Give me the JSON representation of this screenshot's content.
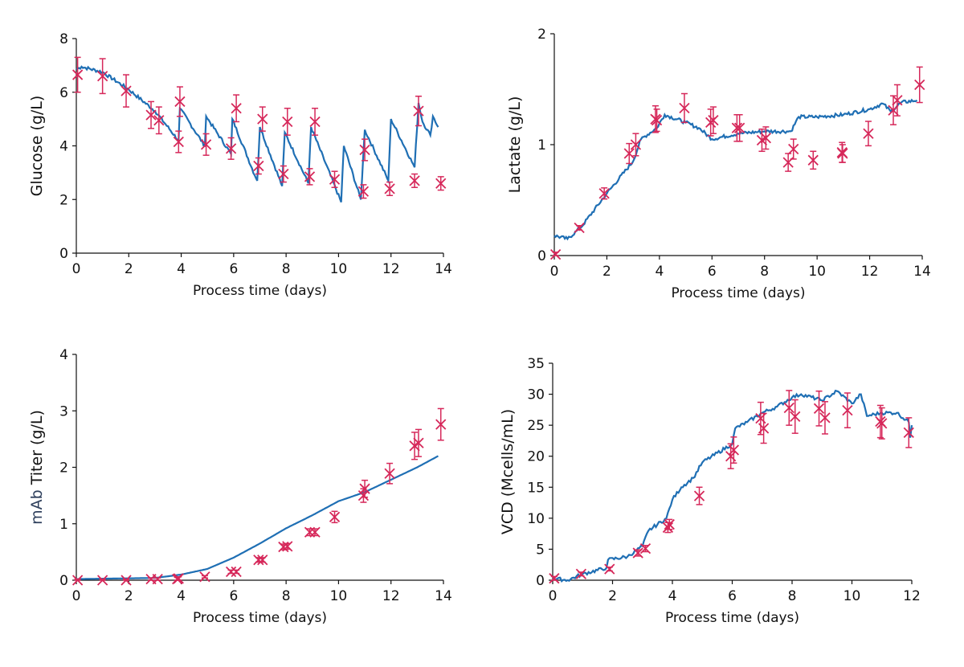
{
  "colors": {
    "model": "#1f6fb4",
    "measured": "#d6285a",
    "mab_label": "#2e3f5c"
  },
  "chart_data": [
    {
      "type": "line",
      "ylabel": "Glucose (g/L)",
      "xlabel": "Process time (days)",
      "xlim": [
        0,
        14
      ],
      "ylim": [
        0,
        8
      ],
      "xticks": [
        "0",
        "2",
        "4",
        "6",
        "8",
        "10",
        "12",
        "14"
      ],
      "yticks": [
        "0",
        "2",
        "4",
        "6",
        "8"
      ],
      "model_line": [
        [
          0,
          6.85
        ],
        [
          0.2,
          6.95
        ],
        [
          1,
          6.75
        ],
        [
          2,
          6.1
        ],
        [
          3,
          5.3
        ],
        [
          3.9,
          4.2
        ],
        [
          3.95,
          5.4
        ],
        [
          4.9,
          4.0
        ],
        [
          4.95,
          5.1
        ],
        [
          5.9,
          3.7
        ],
        [
          5.95,
          5.0
        ],
        [
          6.85,
          2.8
        ],
        [
          6.9,
          2.7
        ],
        [
          7.0,
          4.7
        ],
        [
          7.85,
          2.5
        ],
        [
          7.95,
          4.5
        ],
        [
          8.85,
          2.6
        ],
        [
          8.95,
          4.7
        ],
        [
          10.1,
          1.9
        ],
        [
          10.2,
          4.0
        ],
        [
          10.85,
          2.0
        ],
        [
          11.0,
          4.6
        ],
        [
          11.9,
          2.7
        ],
        [
          12.0,
          5.0
        ],
        [
          12.9,
          3.2
        ],
        [
          13.05,
          5.6
        ],
        [
          13.2,
          4.9
        ],
        [
          13.5,
          4.4
        ],
        [
          13.6,
          5.1
        ],
        [
          13.8,
          4.7
        ]
      ],
      "measured": [
        [
          0.05,
          6.65,
          0.65
        ],
        [
          1,
          6.6,
          0.65
        ],
        [
          1.9,
          6.05,
          0.6
        ],
        [
          2.85,
          5.15,
          0.5
        ],
        [
          3.15,
          4.95,
          0.5
        ],
        [
          3.9,
          4.15,
          0.4
        ],
        [
          3.95,
          5.65,
          0.55
        ],
        [
          4.95,
          4.05,
          0.4
        ],
        [
          5.9,
          3.9,
          0.4
        ],
        [
          6.1,
          5.4,
          0.5
        ],
        [
          6.95,
          3.25,
          0.3
        ],
        [
          7.1,
          5.0,
          0.45
        ],
        [
          7.9,
          2.95,
          0.3
        ],
        [
          8.05,
          4.9,
          0.5
        ],
        [
          8.9,
          2.85,
          0.3
        ],
        [
          9.1,
          4.9,
          0.5
        ],
        [
          9.85,
          2.75,
          0.3
        ],
        [
          10.95,
          2.3,
          0.25
        ],
        [
          11.0,
          3.85,
          0.4
        ],
        [
          11.95,
          2.4,
          0.25
        ],
        [
          12.9,
          2.7,
          0.25
        ],
        [
          13.05,
          5.3,
          0.55
        ],
        [
          13.9,
          2.6,
          0.25
        ]
      ]
    },
    {
      "type": "line",
      "ylabel": "Lactate (g/L)",
      "xlabel": "Process time (days)",
      "xlim": [
        0,
        14
      ],
      "ylim": [
        0,
        2
      ],
      "xticks": [
        "0",
        "2",
        "4",
        "6",
        "8",
        "10",
        "12",
        "14"
      ],
      "yticks": [
        "0",
        "1",
        "2"
      ],
      "model_line": [
        [
          0,
          0.18
        ],
        [
          0.5,
          0.15
        ],
        [
          1,
          0.25
        ],
        [
          2,
          0.56
        ],
        [
          3,
          0.85
        ],
        [
          3.3,
          1.05
        ],
        [
          3.9,
          1.15
        ],
        [
          4.2,
          1.27
        ],
        [
          5,
          1.2
        ],
        [
          5.5,
          1.15
        ],
        [
          6,
          1.05
        ],
        [
          7,
          1.1
        ],
        [
          8,
          1.12
        ],
        [
          9,
          1.12
        ],
        [
          9.3,
          1.25
        ],
        [
          10,
          1.25
        ],
        [
          11,
          1.27
        ],
        [
          12,
          1.32
        ],
        [
          12.5,
          1.37
        ],
        [
          12.8,
          1.3
        ],
        [
          13.2,
          1.38
        ],
        [
          13.8,
          1.4
        ]
      ],
      "measured": [
        [
          0.05,
          0.01,
          0.02
        ],
        [
          0.95,
          0.25,
          0.02
        ],
        [
          1.9,
          0.56,
          0.05
        ],
        [
          2.85,
          0.92,
          0.09
        ],
        [
          3.1,
          1.0,
          0.1
        ],
        [
          3.85,
          1.23,
          0.12
        ],
        [
          3.9,
          1.22,
          0.1
        ],
        [
          4.95,
          1.33,
          0.13
        ],
        [
          5.95,
          1.2,
          0.12
        ],
        [
          6.05,
          1.22,
          0.12
        ],
        [
          6.95,
          1.15,
          0.12
        ],
        [
          7.05,
          1.15,
          0.12
        ],
        [
          7.9,
          1.04,
          0.1
        ],
        [
          8.05,
          1.06,
          0.1
        ],
        [
          8.9,
          0.84,
          0.08
        ],
        [
          9.1,
          0.96,
          0.09
        ],
        [
          9.85,
          0.86,
          0.08
        ],
        [
          10.95,
          0.93,
          0.09
        ],
        [
          10.97,
          0.92,
          0.08
        ],
        [
          11.95,
          1.1,
          0.11
        ],
        [
          12.9,
          1.31,
          0.13
        ],
        [
          13.05,
          1.4,
          0.14
        ],
        [
          13.9,
          1.54,
          0.16
        ]
      ]
    },
    {
      "type": "line",
      "ylabel_prefix": "mAb",
      "ylabel": "Titer (g/L)",
      "xlabel": "Process time (days)",
      "xlim": [
        0,
        14
      ],
      "ylim": [
        0,
        4
      ],
      "xticks": [
        "0",
        "2",
        "4",
        "6",
        "8",
        "10",
        "12",
        "14"
      ],
      "yticks": [
        "0",
        "1",
        "2",
        "3",
        "4"
      ],
      "model_line": [
        [
          0,
          0.02
        ],
        [
          3,
          0.04
        ],
        [
          4,
          0.1
        ],
        [
          5,
          0.2
        ],
        [
          6,
          0.4
        ],
        [
          7,
          0.65
        ],
        [
          8,
          0.92
        ],
        [
          9,
          1.15
        ],
        [
          10,
          1.4
        ],
        [
          11,
          1.56
        ],
        [
          12,
          1.78
        ],
        [
          13,
          2.0
        ],
        [
          13.8,
          2.2
        ]
      ],
      "measured": [
        [
          0.05,
          0,
          0.02
        ],
        [
          1,
          0,
          0.02
        ],
        [
          1.9,
          0,
          0.02
        ],
        [
          2.85,
          0.02,
          0.02
        ],
        [
          3.1,
          0.02,
          0.02
        ],
        [
          3.85,
          0.02,
          0.03
        ],
        [
          3.9,
          0.03,
          0.03
        ],
        [
          4.9,
          0.06,
          0.02
        ],
        [
          5.9,
          0.15,
          0.03
        ],
        [
          6.1,
          0.15,
          0.03
        ],
        [
          6.95,
          0.36,
          0.04
        ],
        [
          7.1,
          0.36,
          0.04
        ],
        [
          7.9,
          0.59,
          0.05
        ],
        [
          8.05,
          0.6,
          0.05
        ],
        [
          8.9,
          0.85,
          0.06
        ],
        [
          9.1,
          0.85,
          0.06
        ],
        [
          9.85,
          1.12,
          0.1
        ],
        [
          10.95,
          1.5,
          0.12
        ],
        [
          11.0,
          1.62,
          0.15
        ],
        [
          11.95,
          1.89,
          0.18
        ],
        [
          12.9,
          2.38,
          0.24
        ],
        [
          13.05,
          2.43,
          0.24
        ],
        [
          13.9,
          2.76,
          0.28
        ]
      ]
    },
    {
      "type": "line",
      "ylabel": "VCD (Mcells/mL)",
      "xlabel": "Process time (days)",
      "xlim": [
        0,
        12
      ],
      "ylim": [
        0,
        35
      ],
      "xticks": [
        "0",
        "2",
        "4",
        "6",
        "8",
        "10",
        "12"
      ],
      "yticks": [
        "0",
        "5",
        "10",
        "15",
        "20",
        "25",
        "30",
        "35"
      ],
      "model_line": [
        [
          0,
          0.3
        ],
        [
          0.5,
          0
        ],
        [
          1,
          1
        ],
        [
          1.8,
          2
        ],
        [
          1.85,
          3.3
        ],
        [
          2.5,
          3.8
        ],
        [
          3,
          5.5
        ],
        [
          3.2,
          8
        ],
        [
          3.8,
          10
        ],
        [
          4,
          13
        ],
        [
          4.3,
          15
        ],
        [
          4.7,
          16.5
        ],
        [
          5,
          19
        ],
        [
          6,
          22
        ],
        [
          6.1,
          24.5
        ],
        [
          6.5,
          25.5
        ],
        [
          7,
          27
        ],
        [
          7.5,
          28
        ],
        [
          8,
          29.5
        ],
        [
          8.3,
          30
        ],
        [
          9,
          29
        ],
        [
          9.5,
          30.5
        ],
        [
          10,
          28.5
        ],
        [
          10.3,
          30
        ],
        [
          10.5,
          26.5
        ],
        [
          11,
          27
        ],
        [
          11.5,
          27
        ],
        [
          11.9,
          25.5
        ],
        [
          11.95,
          23
        ],
        [
          12,
          25
        ]
      ],
      "measured": [
        [
          0.05,
          0.3,
          0.3
        ],
        [
          0.95,
          1.0,
          0.3
        ],
        [
          1.9,
          1.8,
          0.3
        ],
        [
          2.85,
          4.4,
          0.5
        ],
        [
          3.1,
          5.1,
          0.5
        ],
        [
          3.85,
          8.5,
          0.8
        ],
        [
          3.9,
          9.0,
          0.8
        ],
        [
          4.9,
          13.6,
          1.4
        ],
        [
          5.95,
          20,
          2
        ],
        [
          6.05,
          21,
          2.1
        ],
        [
          6.95,
          26.1,
          2.6
        ],
        [
          7.05,
          24.5,
          2.4
        ],
        [
          7.9,
          27.8,
          2.8
        ],
        [
          8.1,
          26.4,
          2.7
        ],
        [
          8.9,
          27.7,
          2.8
        ],
        [
          9.1,
          26.2,
          2.6
        ],
        [
          9.85,
          27.4,
          2.8
        ],
        [
          10.95,
          25.6,
          2.6
        ],
        [
          11.0,
          25.3,
          2.5
        ],
        [
          11.9,
          23.8,
          2.4
        ]
      ]
    }
  ]
}
